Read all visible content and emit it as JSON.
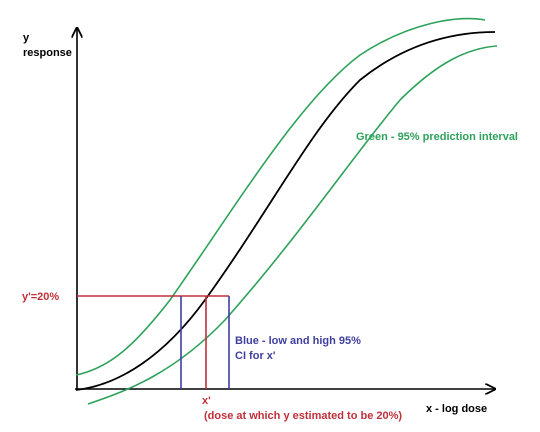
{
  "axes": {
    "y_label_line1": "y",
    "y_label_line2": "response",
    "x_label": "x - log dose"
  },
  "annotations": {
    "green_note": "Green - 95% prediction interval",
    "blue_note_line1": "Blue - low and high 95%",
    "blue_note_line2": "CI for x'",
    "y_prime": "y'=20%",
    "x_prime": "x'",
    "x_prime_note": "(dose at which y estimated to be 20%)"
  },
  "colors": {
    "axis": "#000000",
    "fit_curve": "#000000",
    "prediction_interval": "#2ea25a",
    "confidence_interval": "#3f3fa0",
    "estimate": "#c0303a"
  }
}
